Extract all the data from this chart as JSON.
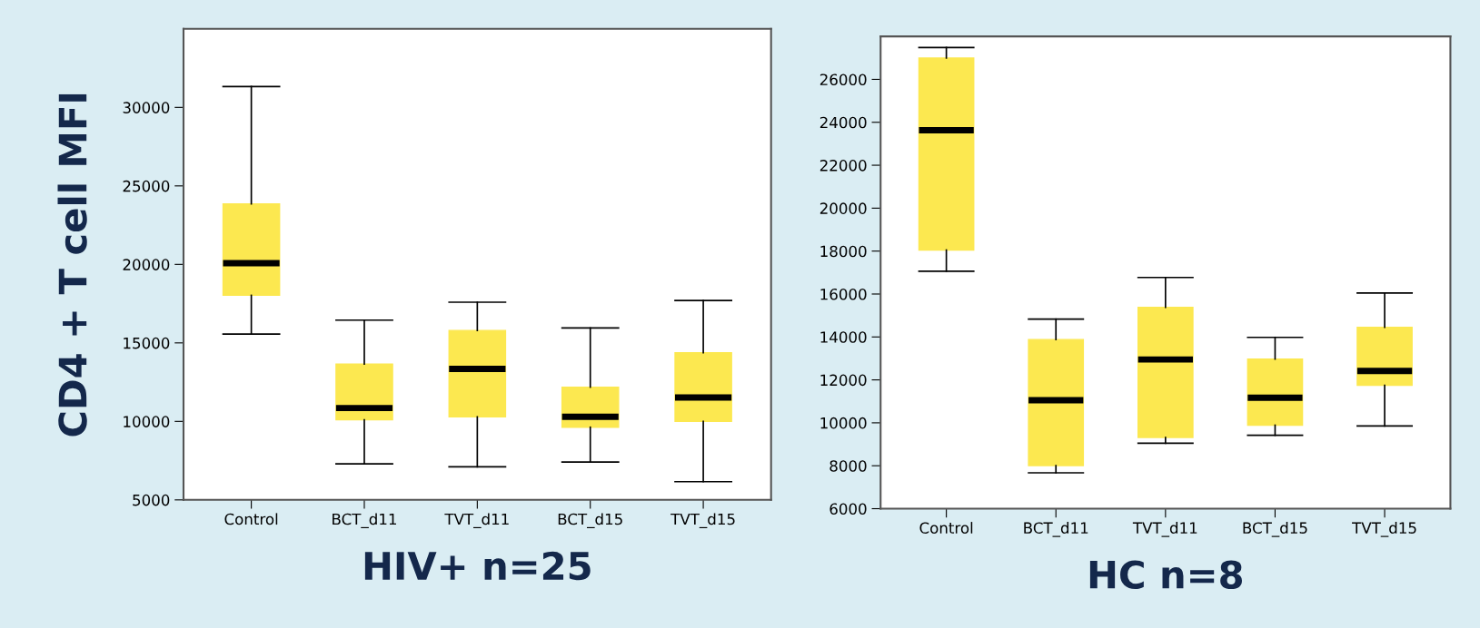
{
  "chart_data": [
    {
      "type": "box",
      "ylabel": "CD4 + T cell MFI",
      "xlabel": "HIV+ n=25",
      "categories": [
        "Control",
        "BCT_d11",
        "TVT_d11",
        "BCT_d15",
        "TVT_d15"
      ],
      "color": "#fce850",
      "ylim": [
        5000,
        35000
      ],
      "yticks": [
        5000,
        10000,
        15000,
        20000,
        25000,
        30000
      ],
      "grid": false,
      "boxes": [
        {
          "low": 15560,
          "q1": 18030,
          "median": 20080,
          "q3": 23850,
          "high": 31330
        },
        {
          "low": 7300,
          "q1": 10100,
          "median": 10850,
          "q3": 13650,
          "high": 16450
        },
        {
          "low": 7110,
          "q1": 10290,
          "median": 13340,
          "q3": 15790,
          "high": 17590
        },
        {
          "low": 7410,
          "q1": 9630,
          "median": 10290,
          "q3": 12180,
          "high": 15950
        },
        {
          "low": 6160,
          "q1": 10000,
          "median": 11520,
          "q3": 14370,
          "high": 17700
        }
      ]
    },
    {
      "type": "box",
      "xlabel": "HC n=8",
      "categories": [
        "Control",
        "BCT_d11",
        "TVT_d11",
        "BCT_d15",
        "TVT_d15"
      ],
      "color": "#fce850",
      "ylim": [
        6000,
        28000
      ],
      "yticks": [
        6000,
        8000,
        10000,
        12000,
        14000,
        16000,
        18000,
        20000,
        22000,
        24000,
        26000
      ],
      "grid": false,
      "boxes": [
        {
          "low": 17060,
          "q1": 18050,
          "median": 23630,
          "q3": 26990,
          "high": 27480
        },
        {
          "low": 7670,
          "q1": 8010,
          "median": 11050,
          "q3": 13880,
          "high": 14830
        },
        {
          "low": 9050,
          "q1": 9320,
          "median": 12950,
          "q3": 15380,
          "high": 16770
        },
        {
          "low": 9420,
          "q1": 9890,
          "median": 11170,
          "q3": 12970,
          "high": 13980
        },
        {
          "low": 9850,
          "q1": 11750,
          "median": 12420,
          "q3": 14450,
          "high": 16050
        }
      ]
    }
  ]
}
